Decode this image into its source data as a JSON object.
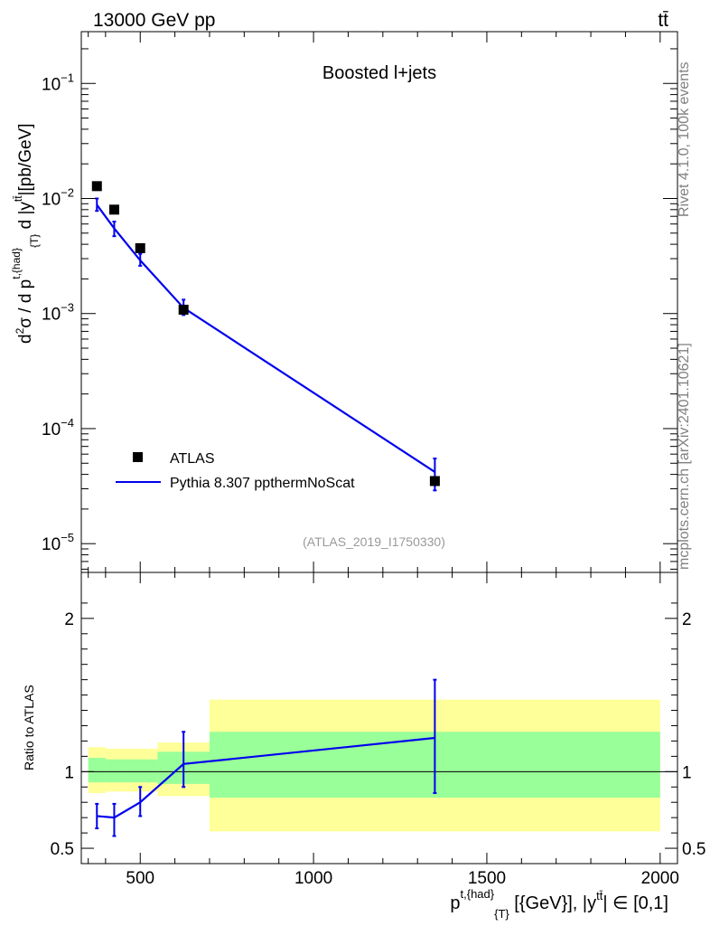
{
  "header": {
    "energy_label": "13000 GeV pp",
    "process_label": "tt̄",
    "side_rivet": "Rivet 4.1.0,  100k events",
    "side_mcplots": "mcplots.cern.ch [arXiv:2401.10621]"
  },
  "colors": {
    "atlas_marker": "#000000",
    "pythia_line": "#0000ee",
    "band_outer": "#ffff99",
    "band_inner": "#99ff99"
  },
  "chart_data": {
    "type": "line",
    "title": "Boosted l+jets",
    "analysis_tag": "(ATLAS_2019_I1750330)",
    "xlabel": "p^{t,{had}}_{T} [{GeV}], |y^{tt̄}| ∈ [0,1]",
    "xlabel_parts": {
      "p": "p",
      "sup": "t,{had}",
      "sub": "{T}",
      "unit": " [{GeV}], |y",
      "ysup": "tt̄",
      "range": "| ∈ [0,1]"
    },
    "ylabel": "d²σ / d p^{t,{had}}_{T} d |y^{tt̄}| [pb/GeV]",
    "ylabel_parts": {
      "d2": "d",
      "two": "2",
      "sigma": "σ  /  d p",
      "sup": "t,{had}",
      "sub": "{T}",
      "d_abs": " d |y",
      "ysup": "tt̄",
      "unit": "|[pb/GeV]"
    },
    "xlim": [
      330,
      2050
    ],
    "main": {
      "yscale": "log",
      "ylim_log10": [
        -5.25,
        -0.55
      ],
      "yticks": [
        {
          "value": 0.1,
          "label": "10",
          "exp": "−1"
        },
        {
          "value": 0.01,
          "label": "10",
          "exp": "−2"
        },
        {
          "value": 0.001,
          "label": "10",
          "exp": "−3"
        },
        {
          "value": 0.0001,
          "label": "10",
          "exp": "−4"
        },
        {
          "value": 1e-05,
          "label": "10",
          "exp": "−5"
        }
      ]
    },
    "ratio": {
      "ylabel": "Ratio to ATLAS",
      "ylim": [
        0.4,
        2.3
      ],
      "yticks": [
        {
          "value": 0.5,
          "label": "0.5"
        },
        {
          "value": 1,
          "label": "1"
        },
        {
          "value": 2,
          "label": "2"
        }
      ],
      "pythia_ratio": [
        {
          "x": 375,
          "y": 0.71,
          "ylo": 0.63,
          "yhi": 0.79
        },
        {
          "x": 425,
          "y": 0.7,
          "ylo": 0.58,
          "yhi": 0.79
        },
        {
          "x": 500,
          "y": 0.8,
          "ylo": 0.71,
          "yhi": 0.9
        },
        {
          "x": 625,
          "y": 1.05,
          "ylo": 0.9,
          "yhi": 1.26
        },
        {
          "x": 1350,
          "y": 1.22,
          "ylo": 0.86,
          "yhi": 1.6
        }
      ],
      "bands": [
        {
          "xlo": 350,
          "xhi": 400,
          "outer": [
            0.86,
            1.16
          ],
          "inner": [
            0.93,
            1.09
          ]
        },
        {
          "xlo": 400,
          "xhi": 450,
          "outer": [
            0.87,
            1.15
          ],
          "inner": [
            0.93,
            1.08
          ]
        },
        {
          "xlo": 450,
          "xhi": 550,
          "outer": [
            0.87,
            1.15
          ],
          "inner": [
            0.93,
            1.08
          ]
        },
        {
          "xlo": 550,
          "xhi": 700,
          "outer": [
            0.84,
            1.19
          ],
          "inner": [
            0.92,
            1.13
          ]
        },
        {
          "xlo": 700,
          "xhi": 2000,
          "outer": [
            0.61,
            1.47
          ],
          "inner": [
            0.83,
            1.26
          ]
        }
      ]
    },
    "xticks": [
      {
        "value": 500,
        "label": "500"
      },
      {
        "value": 1000,
        "label": "1000"
      },
      {
        "value": 1500,
        "label": "1500"
      },
      {
        "value": 2000,
        "label": "2000"
      }
    ],
    "series": [
      {
        "name": "ATLAS",
        "style": "marker-square",
        "points": [
          {
            "x": 375,
            "y": 0.0128
          },
          {
            "x": 425,
            "y": 0.008
          },
          {
            "x": 500,
            "y": 0.0037
          },
          {
            "x": 625,
            "y": 0.00108
          },
          {
            "x": 1350,
            "y": 3.5e-05
          }
        ]
      },
      {
        "name": "Pythia 8.307 ppthermNoScat",
        "style": "line",
        "points": [
          {
            "x": 375,
            "y": 0.0088,
            "ylo": 0.0078,
            "yhi": 0.01
          },
          {
            "x": 425,
            "y": 0.0055,
            "ylo": 0.0047,
            "yhi": 0.0063
          },
          {
            "x": 500,
            "y": 0.0029,
            "ylo": 0.0026,
            "yhi": 0.0033
          },
          {
            "x": 625,
            "y": 0.00112,
            "ylo": 0.00097,
            "yhi": 0.00132
          },
          {
            "x": 1350,
            "y": 4.2e-05,
            "ylo": 2.9e-05,
            "yhi": 5.5e-05
          }
        ]
      }
    ],
    "legend": {
      "position": "bottom-left",
      "entries": [
        "ATLAS",
        "Pythia 8.307 ppthermNoScat"
      ]
    }
  }
}
